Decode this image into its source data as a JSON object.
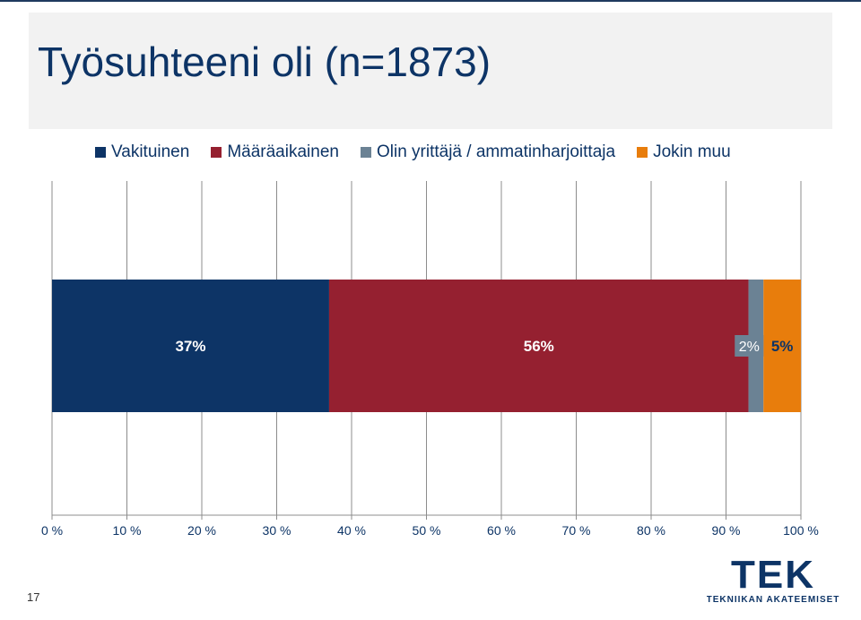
{
  "slide": {
    "title": "Työsuhteeni oli (n=1873)",
    "page_number": "17"
  },
  "logo": {
    "wordmark": "TEK",
    "tagline": "TEKNIIKAN AKATEEMISET",
    "color": "#0d3466"
  },
  "chart_data": {
    "type": "bar",
    "orientation": "horizontal",
    "stacked": "percent",
    "title": "Työsuhteeni oli (n=1873)",
    "xlim": [
      0,
      100
    ],
    "x_ticks": [
      0,
      10,
      20,
      30,
      40,
      50,
      60,
      70,
      80,
      90,
      100
    ],
    "x_tick_labels": [
      "0 %",
      "10 %",
      "20 %",
      "30 %",
      "40 %",
      "50 %",
      "60 %",
      "70 %",
      "80 %",
      "90 %",
      "100 %"
    ],
    "grid": true,
    "legend_position": "top",
    "series": [
      {
        "name": "Vakituinen",
        "values": [
          37
        ],
        "label": "37%",
        "color": "#0d3466"
      },
      {
        "name": "Määräaikainen",
        "values": [
          56
        ],
        "label": "56%",
        "color": "#952030"
      },
      {
        "name": "Olin yrittäjä / ammatinharjoittaja",
        "values": [
          2
        ],
        "label": "2%",
        "color": "#6b8294"
      },
      {
        "name": "Jokin muu",
        "values": [
          5
        ],
        "label": "5%",
        "color": "#e87d0c"
      }
    ]
  }
}
